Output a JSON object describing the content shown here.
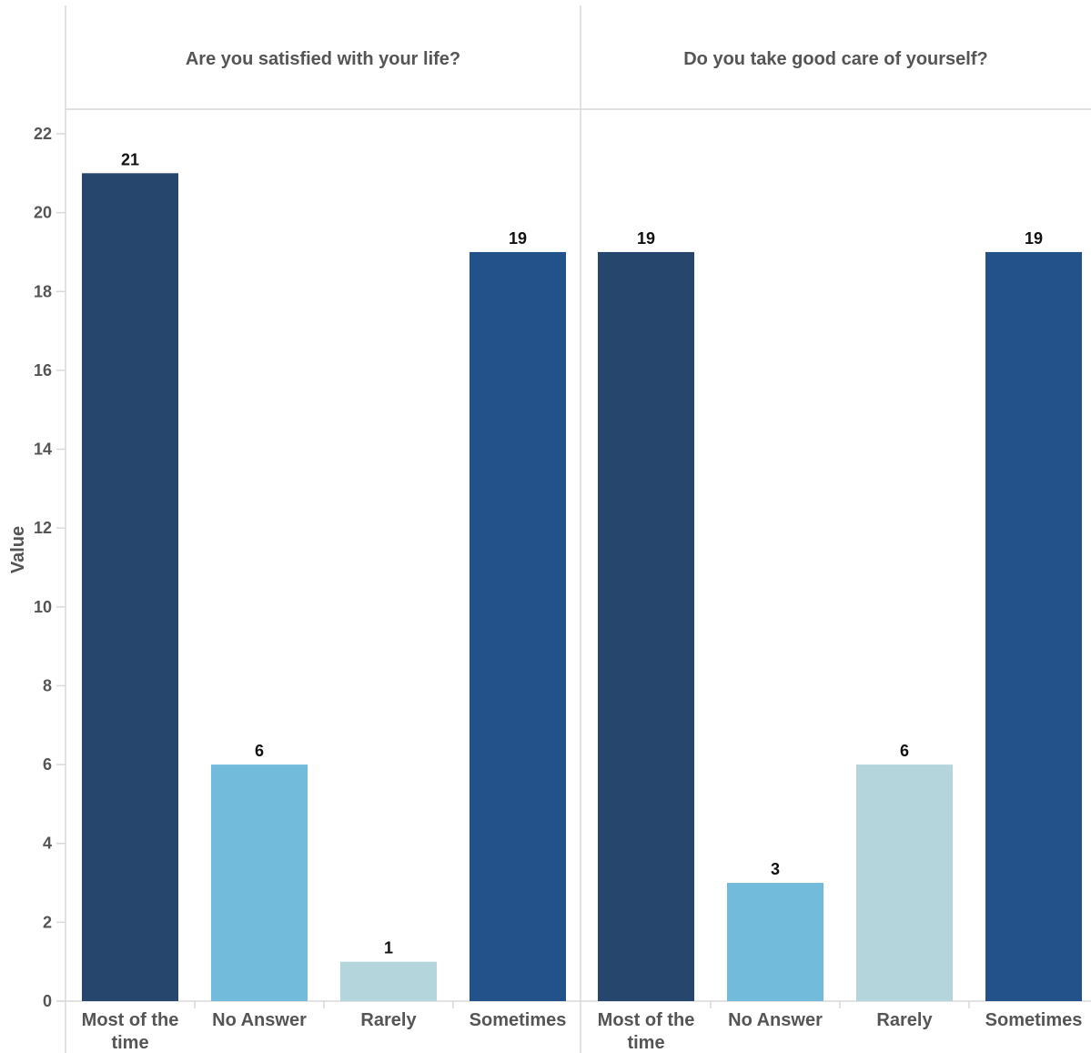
{
  "chart_data": {
    "type": "bar",
    "ylabel": "Value",
    "ylim": [
      0,
      22
    ],
    "yticks": [
      0,
      2,
      4,
      6,
      8,
      10,
      12,
      14,
      16,
      18,
      20,
      22
    ],
    "categories": [
      "Most of the time",
      "No Answer",
      "Rarely",
      "Sometimes"
    ],
    "category_colors": {
      "Most of the time": "#27466d",
      "No Answer": "#72bbdb",
      "Rarely": "#b5d5dc",
      "Sometimes": "#225289"
    },
    "panels": [
      {
        "title": "Are you satisfied with your life?",
        "values": [
          21,
          6,
          1,
          19
        ]
      },
      {
        "title": "Do you take good care of yourself?",
        "values": [
          19,
          3,
          6,
          19
        ]
      }
    ],
    "grid": false,
    "legend": "none"
  }
}
